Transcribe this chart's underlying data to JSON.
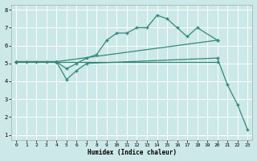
{
  "background_color": "#cde8e8",
  "grid_color": "#b8d8d8",
  "line_color": "#2e8b7a",
  "xlabel": "Humidex (Indice chaleur)",
  "xlim_min": -0.5,
  "xlim_max": 23.5,
  "ylim_min": 0.7,
  "ylim_max": 8.3,
  "xticks": [
    0,
    1,
    2,
    3,
    4,
    5,
    6,
    7,
    8,
    9,
    10,
    11,
    12,
    13,
    14,
    15,
    16,
    17,
    18,
    19,
    20,
    21,
    22,
    23
  ],
  "yticks": [
    1,
    2,
    3,
    4,
    5,
    6,
    7,
    8
  ],
  "lines": [
    {
      "x": [
        0,
        1,
        2,
        3,
        4,
        20
      ],
      "y": [
        5.1,
        5.1,
        5.1,
        5.1,
        5.1,
        5.1
      ]
    },
    {
      "x": [
        0,
        4,
        20
      ],
      "y": [
        5.1,
        5.1,
        6.3
      ]
    },
    {
      "x": [
        0,
        4,
        5,
        6,
        7,
        8,
        9,
        10,
        11,
        12,
        13,
        14,
        15,
        16,
        17,
        18,
        20
      ],
      "y": [
        5.1,
        5.1,
        4.7,
        5.0,
        5.3,
        5.5,
        6.3,
        6.7,
        6.7,
        7.0,
        7.0,
        7.7,
        7.5,
        7.0,
        6.5,
        7.0,
        6.3
      ]
    },
    {
      "x": [
        0,
        4,
        5,
        6,
        7,
        20,
        21,
        22,
        23
      ],
      "y": [
        5.1,
        5.1,
        4.1,
        4.6,
        5.0,
        5.3,
        3.8,
        2.7,
        1.3
      ]
    }
  ]
}
